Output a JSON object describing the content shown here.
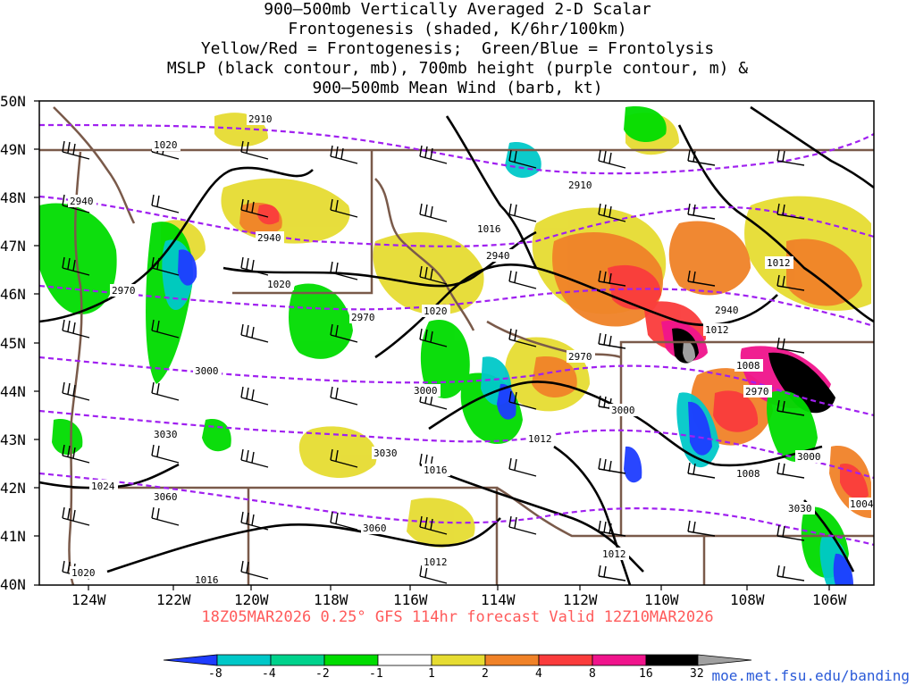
{
  "title_lines": [
    "900–500mb Vertically Averaged 2-D Scalar",
    "Frontogenesis (shaded, K/6hr/100km)",
    "Yellow/Red = Frontogenesis;  Green/Blue = Frontolysis",
    "MSLP (black contour, mb), 700mb height (purple contour, m) &",
    "900–500mb Mean Wind (barb, kt)"
  ],
  "latitudes": [
    "50N",
    "49N",
    "48N",
    "47N",
    "46N",
    "45N",
    "44N",
    "43N",
    "42N",
    "41N",
    "40N"
  ],
  "longitudes": [
    "124W",
    "122W",
    "120W",
    "118W",
    "116W",
    "114W",
    "112W",
    "110W",
    "108W",
    "106W"
  ],
  "subtitle": "18Z05MAR2026 0.25° GFS 114hr forecast Valid 12Z10MAR2026",
  "credit": "moe.met.fsu.edu/banding",
  "colorbar": {
    "labels": [
      "-8",
      "-4",
      "-2",
      "-1",
      "1",
      "2",
      "4",
      "8",
      "16",
      "32"
    ],
    "colors": [
      "#1e3cff",
      "#00c8c8",
      "#00d28c",
      "#00dc00",
      "#ffffff",
      "#e6dc32",
      "#f08228",
      "#fa3c3c",
      "#f0148c",
      "#000000",
      "#a0a0a0"
    ]
  },
  "mslp_labels": [
    "1020",
    "1020",
    "1020",
    "1016",
    "1012",
    "1012",
    "1008",
    "1012",
    "1016",
    "1012",
    "1008",
    "1024",
    "1020",
    "1016",
    "1012",
    "1004"
  ],
  "height_labels": [
    "2910",
    "2910",
    "2940",
    "2940",
    "2940",
    "2970",
    "2970",
    "2940",
    "2970",
    "3000",
    "3000",
    "3000",
    "3030",
    "2970",
    "3030",
    "3060",
    "3060",
    "3000",
    "3030"
  ]
}
